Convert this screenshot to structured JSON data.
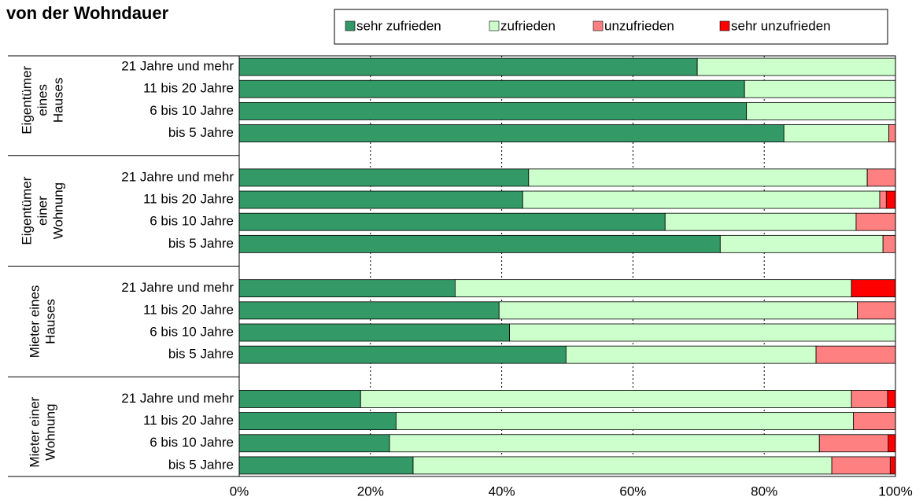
{
  "chart_data": {
    "type": "stacked-bar-horizontal",
    "title": "von der Wohndauer",
    "groups": [
      {
        "name": [
          "Eigentümer",
          "eines",
          "Hauses"
        ],
        "categories": [
          "21 Jahre und mehr",
          "11 bis 20 Jahre",
          "6 bis 10 Jahre",
          "bis 5 Jahre"
        ]
      },
      {
        "name": [
          "Eigentümer",
          "einer",
          "Wohnung"
        ],
        "categories": [
          "21 Jahre und mehr",
          "11 bis 20 Jahre",
          "6 bis 10 Jahre",
          "bis 5 Jahre"
        ]
      },
      {
        "name": [
          "Mieter eines",
          "Hauses"
        ],
        "categories": [
          "21 Jahre und mehr",
          "11 bis 20 Jahre",
          "6 bis 10 Jahre",
          "bis 5 Jahre"
        ]
      },
      {
        "name": [
          "Mieter einer",
          "Wohnung"
        ],
        "categories": [
          "21 Jahre und mehr",
          "11 bis 20 Jahre",
          "6 bis 10 Jahre",
          "bis 5 Jahre"
        ]
      }
    ],
    "series": [
      {
        "name": "sehr zufrieden",
        "color": "#339966",
        "values": [
          69.8,
          77.0,
          77.3,
          83.0,
          44.1,
          43.2,
          64.9,
          73.3,
          32.9,
          39.6,
          41.2,
          49.8,
          18.5,
          23.9,
          22.9,
          26.5
        ]
      },
      {
        "name": "zufrieden",
        "color": "#ccffcc",
        "values": [
          30.2,
          23.0,
          22.7,
          16.0,
          51.6,
          54.4,
          29.1,
          24.8,
          60.4,
          54.6,
          58.8,
          38.1,
          74.8,
          69.7,
          65.5,
          63.8
        ]
      },
      {
        "name": "unzufrieden",
        "color": "#ff8080",
        "values": [
          0,
          0,
          0,
          1.0,
          4.3,
          1.0,
          6.0,
          1.9,
          0,
          5.8,
          0,
          12.1,
          5.5,
          6.4,
          10.5,
          8.9
        ]
      },
      {
        "name": "sehr unzufrieden",
        "color": "#ff0000",
        "values": [
          0,
          0,
          0,
          0,
          0,
          1.4,
          0,
          0,
          6.7,
          0,
          0,
          0,
          1.2,
          0,
          1.1,
          0.8
        ]
      }
    ],
    "xlim": [
      0,
      100
    ],
    "xticks": [
      {
        "value": 0,
        "label": "0%"
      },
      {
        "value": 20,
        "label": "20%"
      },
      {
        "value": 40,
        "label": "40%"
      },
      {
        "value": 60,
        "label": "60%"
      },
      {
        "value": 80,
        "label": "80%"
      },
      {
        "value": 100,
        "label": "100%"
      }
    ],
    "grid": true,
    "legend": "top"
  }
}
